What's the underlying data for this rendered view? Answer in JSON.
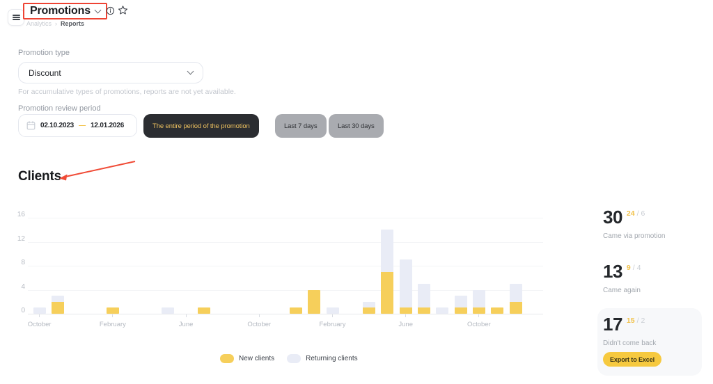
{
  "header": {
    "title": "Promotions",
    "breadcrumb": {
      "parent": "Analytics",
      "separator": "›",
      "current": "Reports"
    },
    "icons": {
      "menu": "hamburger",
      "title_dropdown": "chevron-down",
      "info": "info-circle",
      "favorite": "star-outline"
    }
  },
  "filters": {
    "promotion_type_label": "Promotion type",
    "promotion_type_value": "Discount",
    "helper_text": "For accumulative types of promotions, reports are not yet available.",
    "period_label": "Promotion review period",
    "date_from": "02.10.2023",
    "date_separator": "—",
    "date_to": "12.01.2026",
    "calendar_icon": "calendar",
    "period_buttons": [
      {
        "label": "The entire period of the promotion",
        "active": true
      },
      {
        "label": "Last 7 days",
        "active": false
      },
      {
        "label": "Last 30 days",
        "active": false
      }
    ]
  },
  "clients_section": {
    "heading": "Clients",
    "annotation": "red-arrow-pointing-to-heading"
  },
  "chart_data": {
    "type": "bar",
    "stacked": true,
    "title": "Clients",
    "xlabel": "",
    "ylabel": "",
    "ylim": [
      0,
      16
    ],
    "yticks": [
      0,
      4,
      8,
      12,
      16
    ],
    "grid": true,
    "legend_position": "bottom-center",
    "series": [
      {
        "name": "New clients",
        "color": "#F6CF5B"
      },
      {
        "name": "Returning clients",
        "color": "#E9ECF6"
      }
    ],
    "x_axis_labels": [
      {
        "label": "October",
        "month_index": 0
      },
      {
        "label": "February",
        "month_index": 4
      },
      {
        "label": "June",
        "month_index": 8
      },
      {
        "label": "October",
        "month_index": 12
      },
      {
        "label": "February",
        "month_index": 16
      },
      {
        "label": "June",
        "month_index": 20
      },
      {
        "label": "October",
        "month_index": 24
      }
    ],
    "bars": [
      {
        "month": "Oct 2023",
        "month_index": 0,
        "new": 0,
        "returning": 1
      },
      {
        "month": "Nov 2023",
        "month_index": 1,
        "new": 2,
        "returning": 1
      },
      {
        "month": "Feb 2024",
        "month_index": 4,
        "new": 1,
        "returning": 0
      },
      {
        "month": "May 2024",
        "month_index": 7,
        "new": 0,
        "returning": 1
      },
      {
        "month": "Jul 2024",
        "month_index": 9,
        "new": 1,
        "returning": 0
      },
      {
        "month": "Dec 2024",
        "month_index": 14,
        "new": 1,
        "returning": 0
      },
      {
        "month": "Jan 2025",
        "month_index": 15,
        "new": 4,
        "returning": 0
      },
      {
        "month": "Feb 2025",
        "month_index": 16,
        "new": 0,
        "returning": 1
      },
      {
        "month": "Apr 2025",
        "month_index": 18,
        "new": 1,
        "returning": 1
      },
      {
        "month": "May 2025",
        "month_index": 19,
        "new": 7,
        "returning": 7
      },
      {
        "month": "Jun 2025",
        "month_index": 20,
        "new": 1,
        "returning": 8
      },
      {
        "month": "Jul 2025",
        "month_index": 21,
        "new": 1,
        "returning": 4
      },
      {
        "month": "Aug 2025",
        "month_index": 22,
        "new": 0,
        "returning": 1
      },
      {
        "month": "Sep 2025",
        "month_index": 23,
        "new": 1,
        "returning": 2
      },
      {
        "month": "Oct 2025",
        "month_index": 24,
        "new": 1,
        "returning": 3
      },
      {
        "month": "Nov 2025",
        "month_index": 25,
        "new": 1,
        "returning": 0
      },
      {
        "month": "Dec 2025",
        "month_index": 26,
        "new": 2,
        "returning": 3
      }
    ]
  },
  "stats": [
    {
      "value": "30",
      "highlight": "24",
      "rest": "/ 6",
      "label": "Came via promotion"
    },
    {
      "value": "13",
      "highlight": "9",
      "rest": "/ 4",
      "label": "Came again"
    },
    {
      "value": "17",
      "highlight": "15",
      "rest": "/ 2",
      "label": "Didn't come back",
      "button_label": "Export to Excel"
    }
  ],
  "colors": {
    "bar_new": "#F6CF5B",
    "bar_returning": "#E9ECF6",
    "accent_yellow": "#F1C24B",
    "annotation_red": "#EE4333",
    "dark_button_bg": "#2B2D31",
    "dark_button_text": "#EDC15F",
    "gray_button_bg": "#A9ABB0",
    "export_button_bg": "#F6C93F",
    "card_bg": "#F7F8FA"
  }
}
